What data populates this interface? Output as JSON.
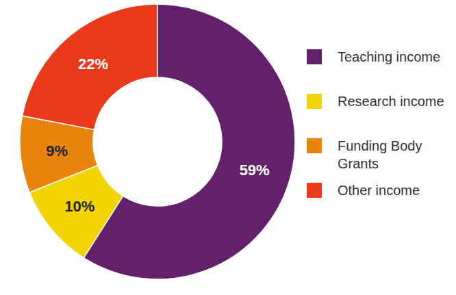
{
  "chart_data": {
    "type": "pie",
    "categories": [
      "Teaching income",
      "Research income",
      "Funding Body Grants",
      "Other income"
    ],
    "values": [
      59,
      10,
      9,
      22
    ],
    "value_labels": [
      "59%",
      "10%",
      "9%",
      "22%"
    ],
    "colors": [
      "#62216a",
      "#f3d400",
      "#e8840c",
      "#ea3a19"
    ],
    "data_labels": true,
    "legend": "right"
  }
}
